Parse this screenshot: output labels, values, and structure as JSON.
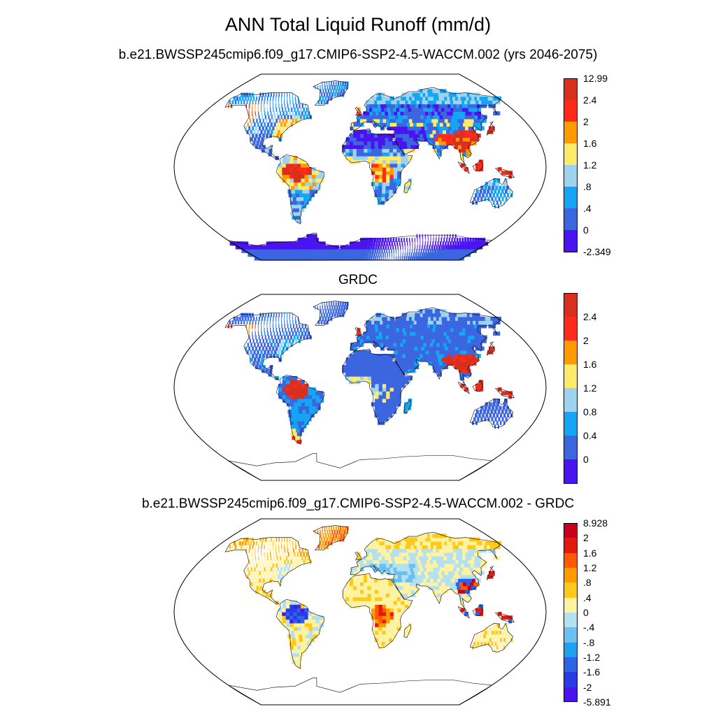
{
  "title": "ANN Total Liquid Runoff (mm/d)",
  "panels": [
    {
      "subtitle": "b.e21.BWSSP245cmip6.f09_g17.CMIP6-SSP2-4.5-WACCM.002 (yrs 2046-2075)",
      "colors": [
        "#d7301f",
        "#ff2a1a",
        "#ff9a00",
        "#ffeb6a",
        "#9dd3ee",
        "#14a5f4",
        "#3b66e0",
        "#4a14f0"
      ],
      "labels": [
        "12.99",
        "2.4",
        "2",
        "1.6",
        "1.2",
        ".8",
        ".4",
        "0",
        "-2.349"
      ]
    },
    {
      "subtitle": "GRDC",
      "colors": [
        "#d7301f",
        "#ff2a1a",
        "#ff9a00",
        "#ffeb6a",
        "#9dd3ee",
        "#14a5f4",
        "#3b66e0",
        "#4a14f0"
      ],
      "labels": [
        "2.4",
        "2",
        "1.6",
        "1.2",
        "0.8",
        "0.4",
        "0"
      ]
    },
    {
      "subtitle": "b.e21.BWSSP245cmip6.f09_g17.CMIP6-SSP2-4.5-WACCM.002 - GRDC",
      "colors": [
        "#c8001e",
        "#e41a10",
        "#ff5a00",
        "#ff9a00",
        "#ffc91c",
        "#fff2a0",
        "#b4e0f0",
        "#6ac0f0",
        "#1ea0f0",
        "#2d64e6",
        "#2c3ae6",
        "#4a14f0"
      ],
      "labels": [
        "8.928",
        "2",
        "1.6",
        "1.2",
        ".8",
        ".4",
        "0",
        "-.4",
        "-.8",
        "-1.2",
        "-1.6",
        "-2",
        "-5.891"
      ]
    }
  ]
}
